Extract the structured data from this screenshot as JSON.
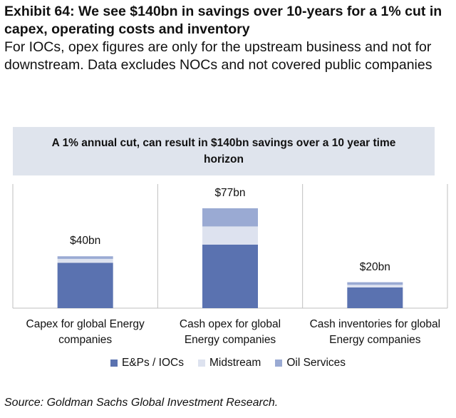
{
  "chart_data": {
    "type": "stacked_bar",
    "title": "Exhibit 64: We see $140bn in savings over 10-years for a 1% cut in capex, operating costs and inventory",
    "subtitle": "For IOCs, opex figures are only for the upstream business and not for downstream. Data excludes NOCs and not covered public companies",
    "annotation": "A 1% annual cut, can result in $140bn savings over a 10 year time horizon",
    "categories": [
      "Capex for global Energy companies",
      "Cash opex for global Energy companies",
      "Cash inventories for global Energy companies"
    ],
    "series": [
      {
        "name": "E&Ps / IOCs",
        "color": "#5a72b0",
        "values": [
          35,
          49,
          16
        ]
      },
      {
        "name": "Midstream",
        "color": "#dde2ef",
        "values": [
          3,
          14,
          2
        ]
      },
      {
        "name": "Oil Services",
        "color": "#9aaad3",
        "values": [
          2,
          14,
          2
        ]
      }
    ],
    "totals": {
      "values": [
        40,
        77,
        20
      ],
      "value_labels": [
        "$40bn",
        "$77bn",
        "$20bn"
      ]
    },
    "source": "Source: Goldman Sachs Global Investment Research."
  }
}
